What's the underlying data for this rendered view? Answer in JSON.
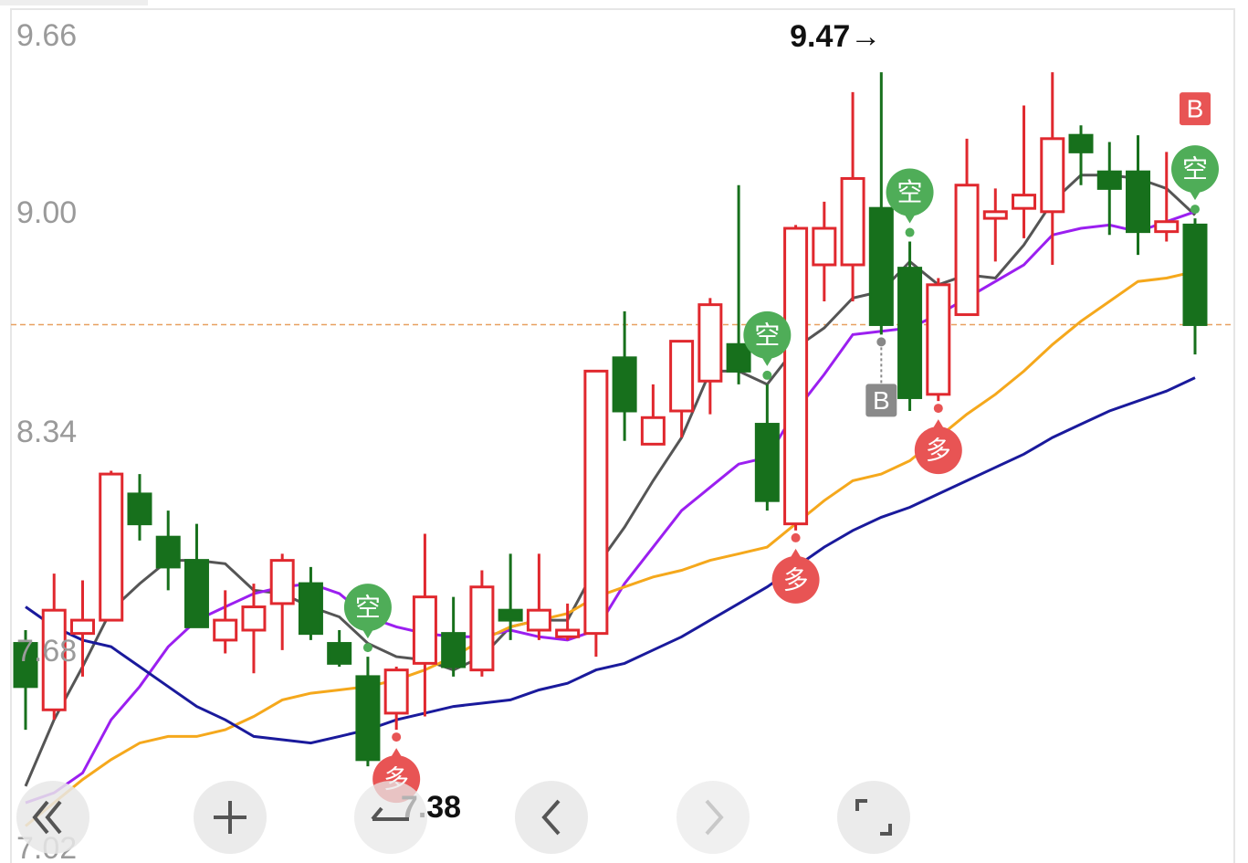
{
  "chart_data": {
    "type": "candlestick",
    "ylim": [
      7.02,
      9.66
    ],
    "yticks": [
      7.02,
      7.68,
      8.34,
      {
        "value": 9,
        "label": "9.00"
      },
      9.66
    ],
    "grid": true,
    "up_color": "#e0282e",
    "down_color": "#17701c",
    "open": [
      7.75,
      7.55,
      7.78,
      7.82,
      8.2,
      8.07,
      8.0,
      7.76,
      7.79,
      7.87,
      7.93,
      7.75,
      7.65,
      7.54,
      7.69,
      7.78,
      7.67,
      7.85,
      7.79,
      7.77,
      7.78,
      8.61,
      8.35,
      8.45,
      8.54,
      8.65,
      8.41,
      8.11,
      8.89,
      8.89,
      9.06,
      8.88,
      8.5,
      8.74,
      9.03,
      9.06,
      9.05,
      9.28,
      9.17,
      9.17,
      8.99,
      9.01
    ],
    "high": [
      7.79,
      7.96,
      7.94,
      8.27,
      8.26,
      8.15,
      8.11,
      7.91,
      7.93,
      8.02,
      7.98,
      7.79,
      7.71,
      7.68,
      8.08,
      7.89,
      7.97,
      8.02,
      8.02,
      7.87,
      8.57,
      8.75,
      8.53,
      8.66,
      8.79,
      9.13,
      8.53,
      9.01,
      9.08,
      9.41,
      9.47,
      8.96,
      8.85,
      9.27,
      9.12,
      9.37,
      9.47,
      9.31,
      9.26,
      9.28,
      9.23,
      9.03
    ],
    "low": [
      7.49,
      7.52,
      7.65,
      7.82,
      8.06,
      7.91,
      7.8,
      7.72,
      7.66,
      7.73,
      7.76,
      7.68,
      7.38,
      7.49,
      7.53,
      7.65,
      7.65,
      7.76,
      7.76,
      7.76,
      7.71,
      8.36,
      8.35,
      8.37,
      8.44,
      8.53,
      8.15,
      8.09,
      8.78,
      8.78,
      8.68,
      8.45,
      8.48,
      8.74,
      8.9,
      8.97,
      8.89,
      9.13,
      8.98,
      8.92,
      8.96,
      8.62
    ],
    "close": [
      7.62,
      7.85,
      7.82,
      8.26,
      8.11,
      7.98,
      7.8,
      7.82,
      7.86,
      8.0,
      7.78,
      7.69,
      7.4,
      7.67,
      7.89,
      7.68,
      7.92,
      7.82,
      7.85,
      7.79,
      8.57,
      8.45,
      8.43,
      8.66,
      8.77,
      8.57,
      8.18,
      9.0,
      9.0,
      9.15,
      8.71,
      8.49,
      8.83,
      9.13,
      9.05,
      9.1,
      9.27,
      9.23,
      9.12,
      8.99,
      9.02,
      8.71
    ],
    "lines": [
      {
        "color": "#555555",
        "values": [
          7.32,
          7.52,
          7.68,
          7.85,
          7.93,
          8.0,
          8.0,
          7.99,
          7.91,
          7.9,
          7.86,
          7.83,
          7.75,
          7.71,
          7.7,
          7.67,
          7.71,
          7.8,
          7.82,
          7.82,
          7.98,
          8.1,
          8.24,
          8.37,
          8.57,
          8.57,
          8.53,
          8.64,
          8.7,
          8.79,
          8.81,
          8.9,
          8.83,
          8.86,
          8.85,
          8.95,
          9.08,
          9.16,
          9.16,
          9.15,
          9.12,
          9.04
        ]
      },
      {
        "color": "#9b1ff0",
        "values": [
          7.27,
          7.3,
          7.36,
          7.52,
          7.62,
          7.74,
          7.82,
          7.86,
          7.9,
          7.92,
          7.93,
          7.9,
          7.83,
          7.8,
          7.78,
          7.77,
          7.77,
          7.79,
          7.77,
          7.76,
          7.79,
          7.93,
          8.04,
          8.15,
          8.22,
          8.29,
          8.31,
          8.45,
          8.56,
          8.68,
          8.69,
          8.7,
          8.74,
          8.79,
          8.84,
          8.89,
          8.98,
          9.0,
          9.01,
          8.99,
          9.02,
          9.05
        ]
      },
      {
        "color": "#f5a81c",
        "values": [
          7.2,
          7.27,
          7.34,
          7.4,
          7.45,
          7.47,
          7.47,
          7.49,
          7.53,
          7.58,
          7.6,
          7.61,
          7.62,
          7.64,
          7.67,
          7.71,
          7.76,
          7.8,
          7.82,
          7.84,
          7.89,
          7.92,
          7.95,
          7.97,
          8.0,
          8.02,
          8.04,
          8.11,
          8.18,
          8.24,
          8.26,
          8.3,
          8.37,
          8.44,
          8.5,
          8.57,
          8.65,
          8.72,
          8.78,
          8.84,
          8.85,
          8.87
        ]
      },
      {
        "color": "#1a1a9c",
        "values": [
          7.86,
          7.8,
          7.76,
          7.74,
          7.68,
          7.62,
          7.56,
          7.52,
          7.47,
          7.46,
          7.45,
          7.47,
          7.49,
          7.52,
          7.54,
          7.56,
          7.57,
          7.58,
          7.61,
          7.63,
          7.67,
          7.69,
          7.73,
          7.77,
          7.82,
          7.87,
          7.92,
          7.98,
          8.04,
          8.09,
          8.13,
          8.16,
          8.2,
          8.24,
          8.28,
          8.32,
          8.37,
          8.41,
          8.45,
          8.48,
          8.51,
          8.55
        ]
      }
    ],
    "current_price": 8.71,
    "high_label": {
      "value": 9.47,
      "label": "9.47→"
    },
    "low_label": 7.38,
    "marks_above": [
      null,
      null,
      null,
      null,
      null,
      null,
      null,
      null,
      null,
      null,
      null,
      null,
      [
        "空"
      ],
      null,
      null,
      null,
      null,
      null,
      null,
      null,
      null,
      null,
      null,
      null,
      null,
      null,
      [
        "空"
      ],
      null,
      null,
      null,
      null,
      [
        "空"
      ],
      null,
      null,
      null,
      null,
      null,
      null,
      null,
      null,
      null,
      [
        "空",
        "B"
      ]
    ],
    "marks_below": [
      null,
      null,
      null,
      null,
      null,
      null,
      null,
      null,
      null,
      null,
      null,
      null,
      null,
      [
        "多"
      ],
      null,
      null,
      null,
      null,
      null,
      null,
      null,
      null,
      null,
      null,
      null,
      null,
      null,
      [
        "多"
      ],
      null,
      null,
      [
        "B"
      ],
      null,
      [
        "多"
      ],
      null,
      null,
      null,
      null,
      null,
      null,
      null,
      null,
      null
    ]
  }
}
